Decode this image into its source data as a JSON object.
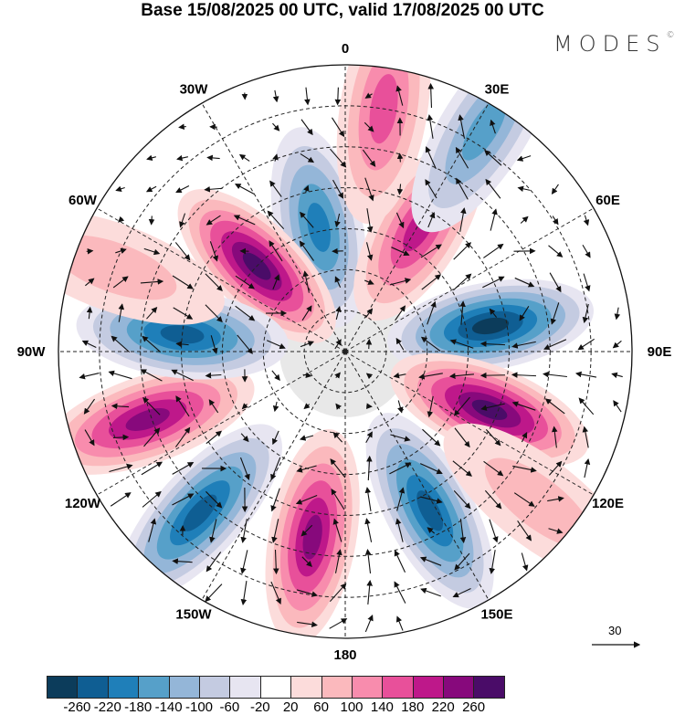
{
  "title": "Base 15/08/2025 00 UTC, valid 17/08/2025 00 UTC",
  "logo": "MODES",
  "logo_mark": "©",
  "map": {
    "projection": "south-polar-stereographic",
    "edge_latitude": -20,
    "longitude_labels": [
      {
        "lon": 0,
        "text": "0"
      },
      {
        "lon": 30,
        "text": "30E"
      },
      {
        "lon": 60,
        "text": "60E"
      },
      {
        "lon": 90,
        "text": "90E"
      },
      {
        "lon": 120,
        "text": "120E"
      },
      {
        "lon": 150,
        "text": "150E"
      },
      {
        "lon": 180,
        "text": "180"
      },
      {
        "lon": -150,
        "text": "150W"
      },
      {
        "lon": -120,
        "text": "120W"
      },
      {
        "lon": -90,
        "text": "90W"
      },
      {
        "lon": -60,
        "text": "60W"
      },
      {
        "lon": -30,
        "text": "30W"
      }
    ],
    "anomaly_centers": [
      {
        "lon": -12,
        "lat": -59,
        "value": -180
      },
      {
        "lon": -46,
        "lat": -60,
        "value": 260
      },
      {
        "lon": 31,
        "lat": -55,
        "value": 180
      },
      {
        "lon": 80,
        "lat": -54,
        "value": -260
      },
      {
        "lon": 112,
        "lat": -52,
        "value": 260
      },
      {
        "lon": 152,
        "lat": -46,
        "value": -220
      },
      {
        "lon": -170,
        "lat": -44,
        "value": 220
      },
      {
        "lon": -138,
        "lat": -37,
        "value": -220
      },
      {
        "lon": -109,
        "lat": -39,
        "value": 220
      },
      {
        "lon": -84,
        "lat": -50,
        "value": -220
      },
      {
        "lon": 9,
        "lat": -30,
        "value": 140
      },
      {
        "lon": 32,
        "lat": -26,
        "value": -140
      },
      {
        "lon": -70,
        "lat": -30,
        "value": 60
      },
      {
        "lon": 128,
        "lat": -30,
        "value": 60
      }
    ]
  },
  "reference_vector": {
    "value": "30"
  },
  "colorbar": {
    "colors": [
      "#0c3c5b",
      "#0f5e93",
      "#1f7fb9",
      "#56a0c9",
      "#94b6d8",
      "#c4cbe1",
      "#e7e5f1",
      "#ffffff",
      "#fcdcdb",
      "#fbb9bd",
      "#f88cad",
      "#e8509a",
      "#be188a",
      "#87097c",
      "#4a0c68"
    ],
    "labels": [
      "-260",
      "-220",
      "-180",
      "-140",
      "-100",
      "-60",
      "-20",
      "20",
      "60",
      "100",
      "140",
      "180",
      "220",
      "260"
    ]
  }
}
